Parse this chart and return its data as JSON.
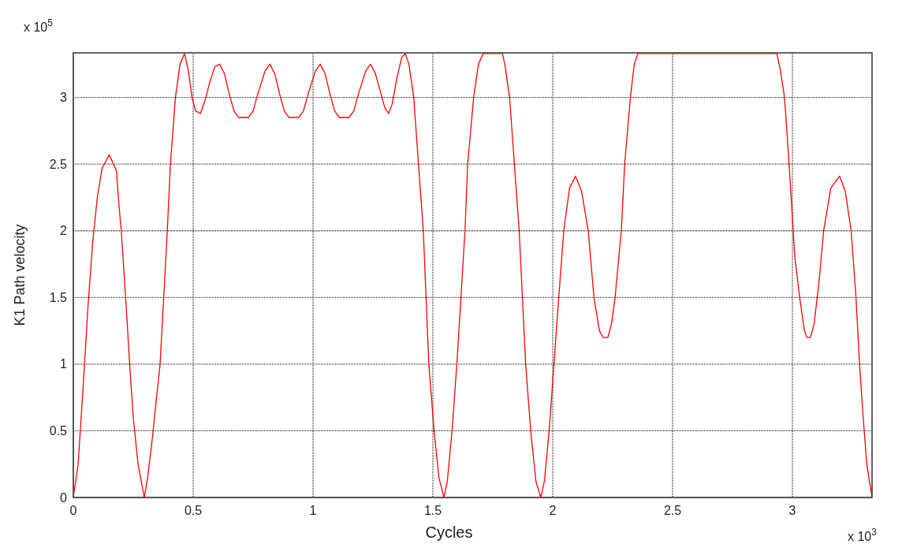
{
  "chart_data": {
    "type": "line",
    "xlabel": "Cycles",
    "ylabel": "K1 Path velocity",
    "annotations": [
      "x 10$^{5}$",
      "x 10$^{3}$"
    ],
    "xlim": [
      0,
      3.332
    ],
    "ylim": [
      0,
      3.335
    ],
    "xticks": [
      0,
      0.5,
      1,
      1.5,
      2,
      2.5,
      3
    ],
    "yticks": [
      0,
      0.5,
      1,
      1.5,
      2,
      2.5,
      3
    ],
    "grid": true,
    "line_style": "solid",
    "series": [
      {
        "color": "#ff0000",
        "x": [
          0,
          0.02,
          0.04,
          0.06,
          0.08,
          0.1,
          0.12,
          0.15,
          0.18,
          0.19,
          0.2,
          0.22,
          0.235,
          0.25,
          0.27,
          0.296,
          0.31,
          0.33,
          0.35,
          0.362,
          0.38,
          0.392,
          0.405,
          0.426,
          0.445,
          0.464,
          0.48,
          0.495,
          0.51,
          0.53,
          0.55,
          0.57,
          0.59,
          0.61,
          0.63,
          0.65,
          0.67,
          0.69,
          0.73,
          0.75,
          0.77,
          0.8,
          0.82,
          0.84,
          0.86,
          0.88,
          0.9,
          0.94,
          0.96,
          0.98,
          1.01,
          1.03,
          1.05,
          1.07,
          1.09,
          1.11,
          1.15,
          1.17,
          1.19,
          1.22,
          1.24,
          1.26,
          1.28,
          1.3,
          1.315,
          1.33,
          1.35,
          1.37,
          1.385,
          1.4,
          1.42,
          1.44,
          1.46,
          1.483,
          1.505,
          1.525,
          1.546,
          1.56,
          1.58,
          1.6,
          1.634,
          1.645,
          1.67,
          1.69,
          1.71,
          1.79,
          1.8,
          1.82,
          1.84,
          1.86,
          1.887,
          1.908,
          1.93,
          1.95,
          1.965,
          1.985,
          2.005,
          2.025,
          2.046,
          2.07,
          2.095,
          2.12,
          2.148,
          2.172,
          2.195,
          2.21,
          2.23,
          2.245,
          2.26,
          2.286,
          2.3,
          2.324,
          2.34,
          2.355,
          2.935,
          2.95,
          2.967,
          2.986,
          3.003,
          3.01,
          3.03,
          3.05,
          3.06,
          3.075,
          3.09,
          3.11,
          3.13,
          3.16,
          3.197,
          3.22,
          3.245,
          3.265,
          3.28,
          3.295,
          3.31,
          3.332
        ],
        "values": [
          0,
          0.25,
          0.8,
          1.4,
          1.9,
          2.25,
          2.47,
          2.57,
          2.45,
          2.2,
          2.0,
          1.45,
          1.0,
          0.6,
          0.25,
          0,
          0.15,
          0.45,
          0.8,
          1.0,
          1.6,
          2.0,
          2.5,
          3.0,
          3.25,
          3.33,
          3.2,
          3.0,
          2.9,
          2.88,
          2.98,
          3.12,
          3.23,
          3.25,
          3.18,
          3.03,
          2.9,
          2.85,
          2.85,
          2.9,
          3.03,
          3.2,
          3.25,
          3.18,
          3.03,
          2.9,
          2.85,
          2.85,
          2.9,
          3.03,
          3.2,
          3.25,
          3.18,
          3.03,
          2.9,
          2.85,
          2.85,
          2.9,
          3.03,
          3.2,
          3.25,
          3.18,
          3.05,
          2.92,
          2.88,
          2.95,
          3.15,
          3.3,
          3.33,
          3.25,
          3.0,
          2.5,
          2.0,
          1.0,
          0.5,
          0.15,
          0,
          0.12,
          0.5,
          1.0,
          2.0,
          2.5,
          3.0,
          3.25,
          3.33,
          3.33,
          3.25,
          3.0,
          2.5,
          2.0,
          1.0,
          0.5,
          0.12,
          0,
          0.12,
          0.5,
          1.0,
          1.5,
          2.0,
          2.32,
          2.41,
          2.3,
          2.0,
          1.5,
          1.25,
          1.2,
          1.2,
          1.3,
          1.5,
          2.0,
          2.5,
          3.0,
          3.25,
          3.33,
          3.33,
          3.2,
          3.0,
          2.5,
          2.0,
          1.8,
          1.5,
          1.25,
          1.2,
          1.2,
          1.3,
          1.6,
          2.0,
          2.32,
          2.41,
          2.3,
          2.0,
          1.5,
          1.0,
          0.6,
          0.25,
          0
        ]
      }
    ]
  }
}
